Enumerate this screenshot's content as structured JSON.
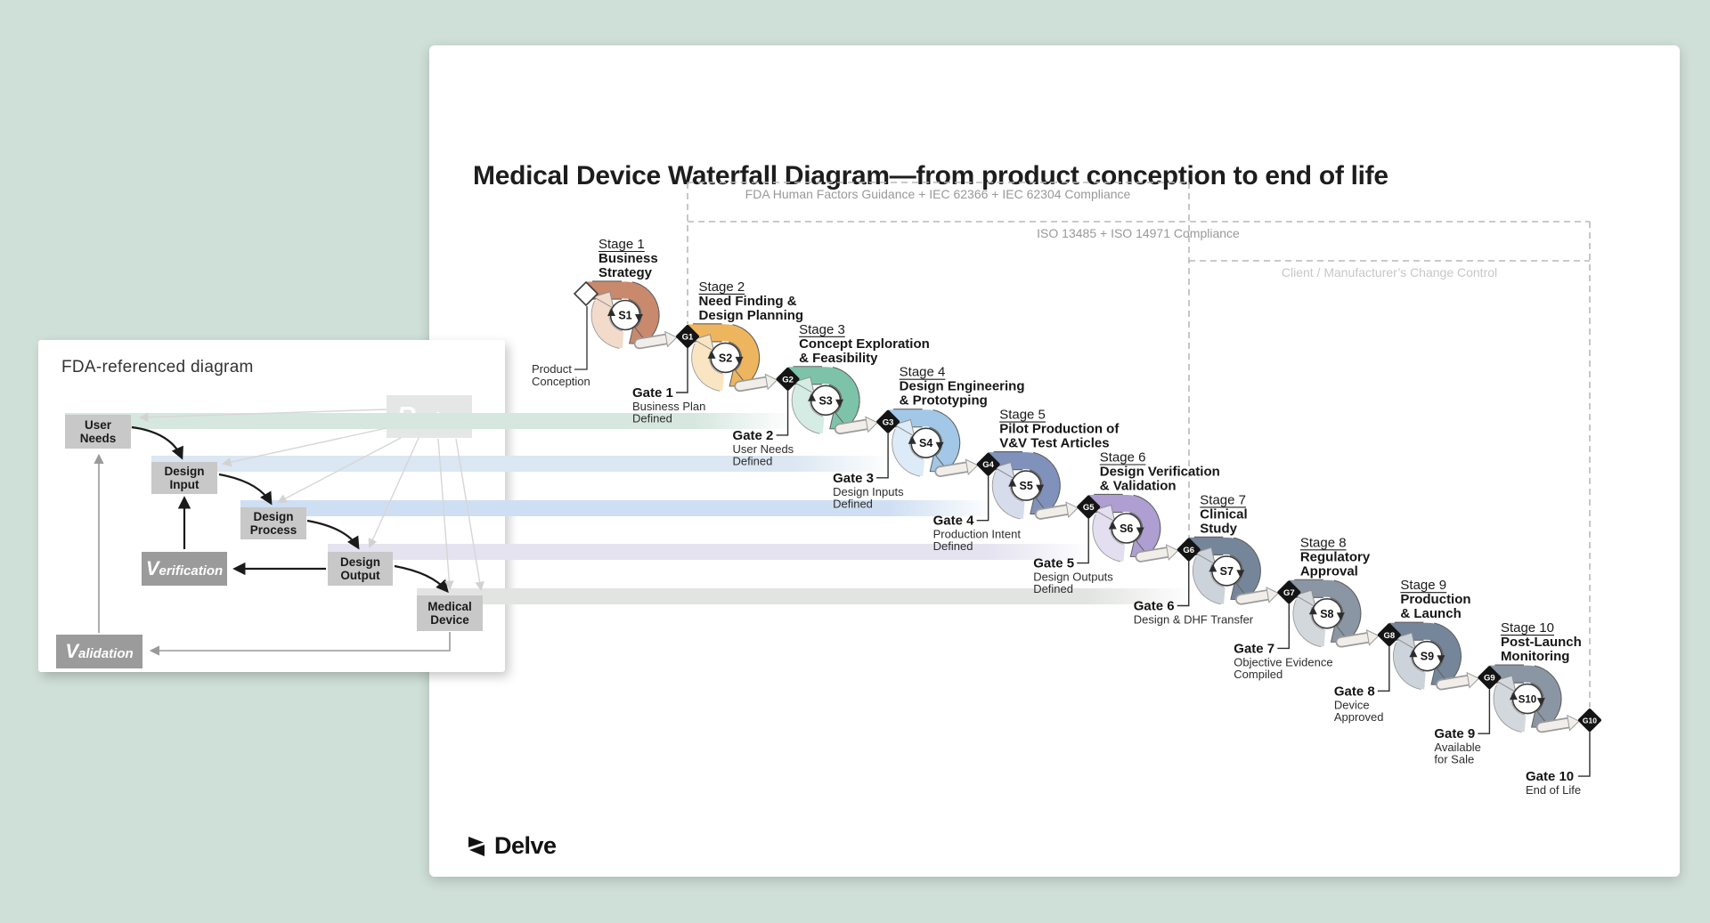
{
  "page": {
    "background": "#cfe0d8"
  },
  "header": {
    "title": "Medical Device Waterfall Diagram—from product conception to end of life"
  },
  "compliance": {
    "fda_label": "FDA Human Factors Guidance + IEC 62366 + IEC 62304 Compliance",
    "iso_label": "ISO 13485 + ISO 14971 Compliance",
    "client_label": "Client / Manufacturer’s Change Control"
  },
  "start": {
    "label_lines": [
      "Product",
      "Conception"
    ]
  },
  "stages": [
    {
      "id": "S1",
      "stage_label": "Stage 1",
      "title_lines": [
        "Business",
        "Strategy"
      ],
      "color": "#c9896d",
      "tint": "#f2dbcb",
      "gate": {
        "id": "G1",
        "label": "Gate 1",
        "desc_lines": [
          "Business Plan",
          "Defined"
        ]
      }
    },
    {
      "id": "S2",
      "stage_label": "Stage 2",
      "title_lines": [
        "Need Finding &",
        "Design Planning"
      ],
      "color": "#eeb55f",
      "tint": "#f9e5c2",
      "gate": {
        "id": "G2",
        "label": "Gate 2",
        "desc_lines": [
          "User Needs",
          "Defined"
        ]
      }
    },
    {
      "id": "S3",
      "stage_label": "Stage 3",
      "title_lines": [
        "Concept Exploration",
        "& Feasibility"
      ],
      "color": "#7dc3a9",
      "tint": "#d4ece3",
      "gate": {
        "id": "G3",
        "label": "Gate 3",
        "desc_lines": [
          "Design Inputs",
          "Defined"
        ]
      }
    },
    {
      "id": "S4",
      "stage_label": "Stage 4",
      "title_lines": [
        "Design Engineering",
        "& Prototyping"
      ],
      "color": "#a2c7e7",
      "tint": "#dcebf7",
      "gate": {
        "id": "G4",
        "label": "Gate 4",
        "desc_lines": [
          "Production Intent",
          "Defined"
        ]
      }
    },
    {
      "id": "S5",
      "stage_label": "Stage 5",
      "title_lines": [
        "Pilot Production of",
        "V&V Test Articles"
      ],
      "color": "#8092bb",
      "tint": "#d6dceb",
      "gate": {
        "id": "G5",
        "label": "Gate 5",
        "desc_lines": [
          "Design Outputs",
          "Defined"
        ]
      }
    },
    {
      "id": "S6",
      "stage_label": "Stage 6",
      "title_lines": [
        "Design Verification",
        "& Validation"
      ],
      "color": "#ae9ed2",
      "tint": "#e3def0",
      "gate": {
        "id": "G6",
        "label": "Gate 6",
        "desc_lines": [
          "Design & DHF Transfer"
        ]
      }
    },
    {
      "id": "S7",
      "stage_label": "Stage 7",
      "title_lines": [
        "Clinical",
        "Study"
      ],
      "color": "#75869b",
      "tint": "#ccd3da",
      "gate": {
        "id": "G7",
        "label": "Gate 7",
        "desc_lines": [
          "Objective Evidence",
          "Compiled"
        ]
      }
    },
    {
      "id": "S8",
      "stage_label": "Stage 8",
      "title_lines": [
        "Regulatory",
        "Approval"
      ],
      "color": "#8a96a3",
      "tint": "#d3d8dd",
      "gate": {
        "id": "G8",
        "label": "Gate 8",
        "desc_lines": [
          "Device",
          "Approved"
        ]
      }
    },
    {
      "id": "S9",
      "stage_label": "Stage 9",
      "title_lines": [
        "Production",
        "& Launch"
      ],
      "color": "#75869b",
      "tint": "#ccd3da",
      "gate": {
        "id": "G9",
        "label": "Gate 9",
        "desc_lines": [
          "Available",
          "for Sale"
        ]
      }
    },
    {
      "id": "S10",
      "stage_label": "Stage 10",
      "title_lines": [
        "Post-Launch",
        "Monitoring"
      ],
      "color": "#8a96a3",
      "tint": "#d3d8dd",
      "gate": {
        "id": "G10",
        "label": "Gate 10",
        "desc_lines": [
          "End of Life"
        ]
      }
    }
  ],
  "ribbons": [
    {
      "from": "User Needs",
      "to": "Stage 3",
      "color": "#d6e7e0"
    },
    {
      "from": "Design Input",
      "to": "Stage 4",
      "color": "#dbe7f2"
    },
    {
      "from": "Design Process",
      "to": "Stage 5",
      "color": "#cfdff3"
    },
    {
      "from": "Design Output",
      "to": "Stage 6",
      "color": "#e5e3f0"
    },
    {
      "from": "Medical Device",
      "to": "Stage 7",
      "color": "#e2e4e1"
    }
  ],
  "inset": {
    "title": "FDA-referenced diagram",
    "nodes": [
      {
        "label": "User Needs"
      },
      {
        "label": "Design Input"
      },
      {
        "label": "Design Process"
      },
      {
        "label": "Design Output"
      },
      {
        "label": "Medical Device"
      },
      {
        "label": "Verification"
      },
      {
        "label": "Validation"
      },
      {
        "label": "Review"
      }
    ]
  },
  "footer": {
    "brand": "Delve"
  }
}
